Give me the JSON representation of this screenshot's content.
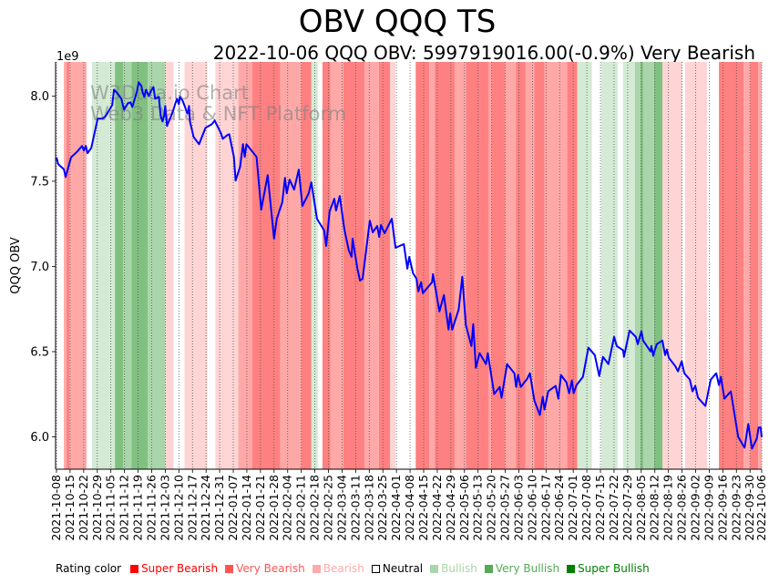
{
  "chart_data": {
    "type": "line",
    "title": "OBV QQQ TS",
    "subtitle": "2022-10-06 QQQ OBV: 5997919016.00(-0.9%) Very Bearish",
    "ylabel": "QQQ OBV",
    "y_offset_label": "1e9",
    "ylim": [
      5.81,
      8.2
    ],
    "y_ticks": [
      6.0,
      6.5,
      7.0,
      7.5,
      8.0
    ],
    "y_tick_labels": [
      "6.0",
      "6.5",
      "7.0",
      "7.5",
      "8.0"
    ],
    "x_start_date": "2021-10-08",
    "x_unit": "days since 2021-10-08",
    "xlim": [
      0,
      363
    ],
    "x_tick_labels": [
      "2021-10-08",
      "2021-10-15",
      "2021-10-22",
      "2021-10-29",
      "2021-11-05",
      "2021-11-12",
      "2021-11-19",
      "2021-11-26",
      "2021-12-03",
      "2021-12-10",
      "2021-12-17",
      "2021-12-24",
      "2021-12-31",
      "2022-01-07",
      "2022-01-14",
      "2022-01-21",
      "2022-01-28",
      "2022-02-04",
      "2022-02-11",
      "2022-02-18",
      "2022-02-25",
      "2022-03-04",
      "2022-03-11",
      "2022-03-18",
      "2022-03-25",
      "2022-04-01",
      "2022-04-08",
      "2022-04-15",
      "2022-04-22",
      "2022-04-29",
      "2022-05-06",
      "2022-05-13",
      "2022-05-20",
      "2022-05-27",
      "2022-06-03",
      "2022-06-10",
      "2022-06-17",
      "2022-06-24",
      "2022-07-01",
      "2022-07-08",
      "2022-07-15",
      "2022-07-22",
      "2022-07-29",
      "2022-08-05",
      "2022-08-12",
      "2022-08-19",
      "2022-08-26",
      "2022-09-02",
      "2022-09-09",
      "2022-09-16",
      "2022-09-23",
      "2022-09-30",
      "2022-10-06"
    ],
    "grid": "vertical dotted weekly",
    "watermark": [
      "W3Data.io Chart",
      "Web3 Data & NFT Platform"
    ],
    "series": [
      {
        "name": "QQQ OBV (1e9)",
        "color": "#0000ff",
        "points": [
          [
            0,
            7.64
          ],
          [
            0.9,
            7.6
          ],
          [
            3.8,
            7.57
          ],
          [
            4.7,
            7.525
          ],
          [
            7.5,
            7.64
          ],
          [
            10.8,
            7.675
          ],
          [
            11.8,
            7.69
          ],
          [
            13.2,
            7.707
          ],
          [
            14.1,
            7.68
          ],
          [
            15.1,
            7.707
          ],
          [
            16,
            7.664
          ],
          [
            17.9,
            7.696
          ],
          [
            21.2,
            7.867
          ],
          [
            23.5,
            7.867
          ],
          [
            24.9,
            7.877
          ],
          [
            25.9,
            7.893
          ],
          [
            28.7,
            7.947
          ],
          [
            29.6,
            8.037
          ],
          [
            31,
            8.021
          ],
          [
            33.4,
            7.984
          ],
          [
            34.8,
            7.92
          ],
          [
            36.7,
            7.957
          ],
          [
            38.1,
            7.963
          ],
          [
            39,
            7.936
          ],
          [
            40,
            7.973
          ],
          [
            41.4,
            8.027
          ],
          [
            42.3,
            8.08
          ],
          [
            43.7,
            8.059
          ],
          [
            44.2,
            8.027
          ],
          [
            45.2,
            7.995
          ],
          [
            46.1,
            8.037
          ],
          [
            47.5,
            8.0
          ],
          [
            48.5,
            8.027
          ],
          [
            49.9,
            8.053
          ],
          [
            50.8,
            7.984
          ],
          [
            52.7,
            7.995
          ],
          [
            53.6,
            7.883
          ],
          [
            54.6,
            7.851
          ],
          [
            55.5,
            7.888
          ],
          [
            56,
            7.941
          ],
          [
            56.9,
            7.824
          ],
          [
            57.4,
            7.84
          ],
          [
            58.8,
            7.877
          ],
          [
            60.2,
            7.92
          ],
          [
            61.2,
            7.957
          ],
          [
            62.1,
            7.984
          ],
          [
            63,
            7.952
          ],
          [
            63.5,
            7.995
          ],
          [
            64.9,
            7.973
          ],
          [
            66.3,
            7.931
          ],
          [
            67.3,
            7.899
          ],
          [
            67.7,
            7.904
          ],
          [
            68.2,
            7.941
          ],
          [
            68.7,
            7.851
          ],
          [
            70.6,
            7.76
          ],
          [
            73.4,
            7.717
          ],
          [
            76.7,
            7.813
          ],
          [
            80,
            7.835
          ],
          [
            81.4,
            7.856
          ],
          [
            84.7,
            7.781
          ],
          [
            85.6,
            7.749
          ],
          [
            88,
            7.771
          ],
          [
            88.9,
            7.776
          ],
          [
            91.3,
            7.643
          ],
          [
            92.2,
            7.504
          ],
          [
            94.5,
            7.584
          ],
          [
            96,
            7.717
          ],
          [
            96.9,
            7.643
          ],
          [
            97.8,
            7.717
          ],
          [
            103,
            7.643
          ],
          [
            105.4,
            7.333
          ],
          [
            108.7,
            7.536
          ],
          [
            112,
            7.163
          ],
          [
            113.4,
            7.28
          ],
          [
            116.2,
            7.376
          ],
          [
            117.6,
            7.52
          ],
          [
            118.5,
            7.429
          ],
          [
            120,
            7.509
          ],
          [
            122.3,
            7.451
          ],
          [
            124.7,
            7.568
          ],
          [
            126.6,
            7.355
          ],
          [
            129.8,
            7.429
          ],
          [
            131.2,
            7.493
          ],
          [
            134.1,
            7.28
          ],
          [
            137.8,
            7.211
          ],
          [
            138.8,
            7.12
          ],
          [
            140.6,
            7.323
          ],
          [
            143,
            7.397
          ],
          [
            143.9,
            7.328
          ],
          [
            145.8,
            7.413
          ],
          [
            148.2,
            7.216
          ],
          [
            150.5,
            7.093
          ],
          [
            151.9,
            7.056
          ],
          [
            152.4,
            7.163
          ],
          [
            154.8,
            6.992
          ],
          [
            156.2,
            6.917
          ],
          [
            157.6,
            6.928
          ],
          [
            161.3,
            7.269
          ],
          [
            162.8,
            7.2
          ],
          [
            165.1,
            7.237
          ],
          [
            166.1,
            7.173
          ],
          [
            167,
            7.243
          ],
          [
            168.9,
            7.195
          ],
          [
            172.6,
            7.28
          ],
          [
            174.5,
            7.109
          ],
          [
            178.8,
            7.131
          ],
          [
            180.6,
            6.987
          ],
          [
            181.6,
            7.056
          ],
          [
            183.5,
            6.96
          ],
          [
            185.3,
            6.928
          ],
          [
            186.3,
            6.853
          ],
          [
            187.7,
            6.907
          ],
          [
            188.6,
            6.843
          ],
          [
            193.3,
            6.907
          ],
          [
            193.8,
            6.955
          ],
          [
            197.1,
            6.736
          ],
          [
            199.4,
            6.832
          ],
          [
            201.8,
            6.629
          ],
          [
            202.7,
            6.725
          ],
          [
            203.7,
            6.629
          ],
          [
            207,
            6.747
          ],
          [
            208.9,
            6.939
          ],
          [
            210.7,
            6.656
          ],
          [
            213.6,
            6.533
          ],
          [
            214.5,
            6.661
          ],
          [
            215.9,
            6.405
          ],
          [
            217.8,
            6.491
          ],
          [
            221.1,
            6.427
          ],
          [
            222,
            6.491
          ],
          [
            225.3,
            6.251
          ],
          [
            228.1,
            6.293
          ],
          [
            229.1,
            6.229
          ],
          [
            231.9,
            6.427
          ],
          [
            235.7,
            6.373
          ],
          [
            236.6,
            6.293
          ],
          [
            237.6,
            6.363
          ],
          [
            239,
            6.293
          ],
          [
            242.3,
            6.341
          ],
          [
            243.7,
            6.373
          ],
          [
            246,
            6.213
          ],
          [
            248.8,
            6.128
          ],
          [
            250.3,
            6.235
          ],
          [
            251.2,
            6.16
          ],
          [
            253.1,
            6.267
          ],
          [
            256.9,
            6.299
          ],
          [
            258.3,
            6.224
          ],
          [
            259.7,
            6.363
          ],
          [
            262.5,
            6.32
          ],
          [
            263.9,
            6.256
          ],
          [
            265.3,
            6.331
          ],
          [
            266.2,
            6.256
          ],
          [
            267.7,
            6.304
          ],
          [
            271,
            6.352
          ],
          [
            273.8,
            6.523
          ],
          [
            277.1,
            6.48
          ],
          [
            279.4,
            6.357
          ],
          [
            281.3,
            6.469
          ],
          [
            284.1,
            6.427
          ],
          [
            287,
            6.587
          ],
          [
            288.4,
            6.533
          ],
          [
            291.7,
            6.507
          ],
          [
            292.1,
            6.469
          ],
          [
            295,
            6.624
          ],
          [
            298.2,
            6.587
          ],
          [
            299.2,
            6.544
          ],
          [
            301.1,
            6.619
          ],
          [
            302,
            6.565
          ],
          [
            305.8,
            6.501
          ],
          [
            306.2,
            6.533
          ],
          [
            307.2,
            6.475
          ],
          [
            307.6,
            6.496
          ],
          [
            309,
            6.544
          ],
          [
            311.9,
            6.565
          ],
          [
            313.3,
            6.48
          ],
          [
            314.2,
            6.512
          ],
          [
            315.2,
            6.464
          ],
          [
            318.5,
            6.416
          ],
          [
            319.9,
            6.384
          ],
          [
            321.8,
            6.443
          ],
          [
            323.2,
            6.373
          ],
          [
            326,
            6.336
          ],
          [
            327.4,
            6.267
          ],
          [
            328.8,
            6.299
          ],
          [
            330.2,
            6.229
          ],
          [
            334,
            6.181
          ],
          [
            336.8,
            6.336
          ],
          [
            339.6,
            6.373
          ],
          [
            341,
            6.304
          ],
          [
            342,
            6.352
          ],
          [
            343.8,
            6.224
          ],
          [
            347.1,
            6.267
          ],
          [
            350.9,
            6.0
          ],
          [
            354.2,
            5.936
          ],
          [
            356.1,
            6.075
          ],
          [
            358,
            5.931
          ],
          [
            360.5,
            5.99
          ],
          [
            361.4,
            6.055
          ],
          [
            362.5,
            6.055
          ],
          [
            363,
            5.998
          ]
        ]
      }
    ],
    "rating_bands": [
      [
        3.8,
        5.2,
        "very_bearish"
      ],
      [
        5.2,
        6.6,
        "super_bearish"
      ],
      [
        6.6,
        15.5,
        "very_bearish"
      ],
      [
        18.3,
        30.1,
        "bullish"
      ],
      [
        30.1,
        34.3,
        "super_bullish"
      ],
      [
        34.3,
        38.6,
        "very_bullish"
      ],
      [
        38.6,
        47,
        "super_bullish"
      ],
      [
        47,
        56,
        "very_bullish"
      ],
      [
        56,
        60.2,
        "bearish"
      ],
      [
        65.9,
        77.6,
        "bearish"
      ],
      [
        81.8,
        93.6,
        "bearish"
      ],
      [
        93.6,
        100.7,
        "very_bearish"
      ],
      [
        100.7,
        115.2,
        "super_bearish"
      ],
      [
        115.2,
        126,
        "very_bearish"
      ],
      [
        126,
        131.2,
        "super_bearish"
      ],
      [
        131.2,
        134.5,
        "bullish"
      ],
      [
        136.9,
        141.1,
        "super_bearish"
      ],
      [
        141.1,
        147.7,
        "very_bearish"
      ],
      [
        147.7,
        158.5,
        "super_bearish"
      ],
      [
        158.5,
        166,
        "very_bearish"
      ],
      [
        166,
        171.7,
        "super_bearish"
      ],
      [
        171.7,
        174.5,
        "bearish"
      ],
      [
        184.9,
        191.9,
        "super_bearish"
      ],
      [
        191.9,
        194.7,
        "very_bearish"
      ],
      [
        194.7,
        205.1,
        "super_bearish"
      ],
      [
        205.1,
        210.7,
        "very_bearish"
      ],
      [
        210.7,
        222.5,
        "super_bearish"
      ],
      [
        222.5,
        223.9,
        "very_bearish"
      ],
      [
        223.9,
        230.9,
        "super_bearish"
      ],
      [
        230.9,
        236.6,
        "very_bearish"
      ],
      [
        236.6,
        241.3,
        "super_bearish"
      ],
      [
        241.3,
        246,
        "very_bearish"
      ],
      [
        246,
        251.2,
        "super_bearish"
      ],
      [
        251.2,
        262.9,
        "very_bearish"
      ],
      [
        262.9,
        268.1,
        "super_bearish"
      ],
      [
        268.1,
        275.6,
        "bullish"
      ],
      [
        280.3,
        288.8,
        "bullish"
      ],
      [
        291.6,
        297.7,
        "bullish"
      ],
      [
        297.7,
        300.6,
        "very_bullish"
      ],
      [
        300.6,
        302,
        "super_bullish"
      ],
      [
        302,
        307.6,
        "very_bullish"
      ],
      [
        307.6,
        311.9,
        "super_bullish"
      ],
      [
        311.9,
        322.2,
        "bearish"
      ],
      [
        323.6,
        334.9,
        "bearish"
      ],
      [
        341,
        353.7,
        "super_bearish"
      ],
      [
        353.7,
        357,
        "very_bearish"
      ],
      [
        357,
        361.2,
        "super_bearish"
      ],
      [
        361.2,
        363,
        "very_bearish"
      ]
    ],
    "band_colors": {
      "super_bearish": "#ff8080",
      "very_bearish": "#ffa8a8",
      "bearish": "#ffd4d4",
      "neutral": "#ffffff",
      "bullish": "#d4ead4",
      "very_bullish": "#aad5aa",
      "super_bullish": "#80c080"
    },
    "legend": {
      "label": "Rating color",
      "placement": "bottom",
      "items": [
        {
          "key": "super_bearish",
          "label": "Super Bearish",
          "color": "#ff0000"
        },
        {
          "key": "very_bearish",
          "label": "Very Bearish",
          "color": "#ff5555"
        },
        {
          "key": "bearish",
          "label": "Bearish",
          "color": "#ffaaaa"
        },
        {
          "key": "neutral",
          "label": "Neutral",
          "color": "#000000"
        },
        {
          "key": "bullish",
          "label": "Bullish",
          "color": "#aad5aa"
        },
        {
          "key": "very_bullish",
          "label": "Very Bullish",
          "color": "#55aa55"
        },
        {
          "key": "super_bullish",
          "label": "Super Bullish",
          "color": "#008000"
        }
      ]
    }
  }
}
